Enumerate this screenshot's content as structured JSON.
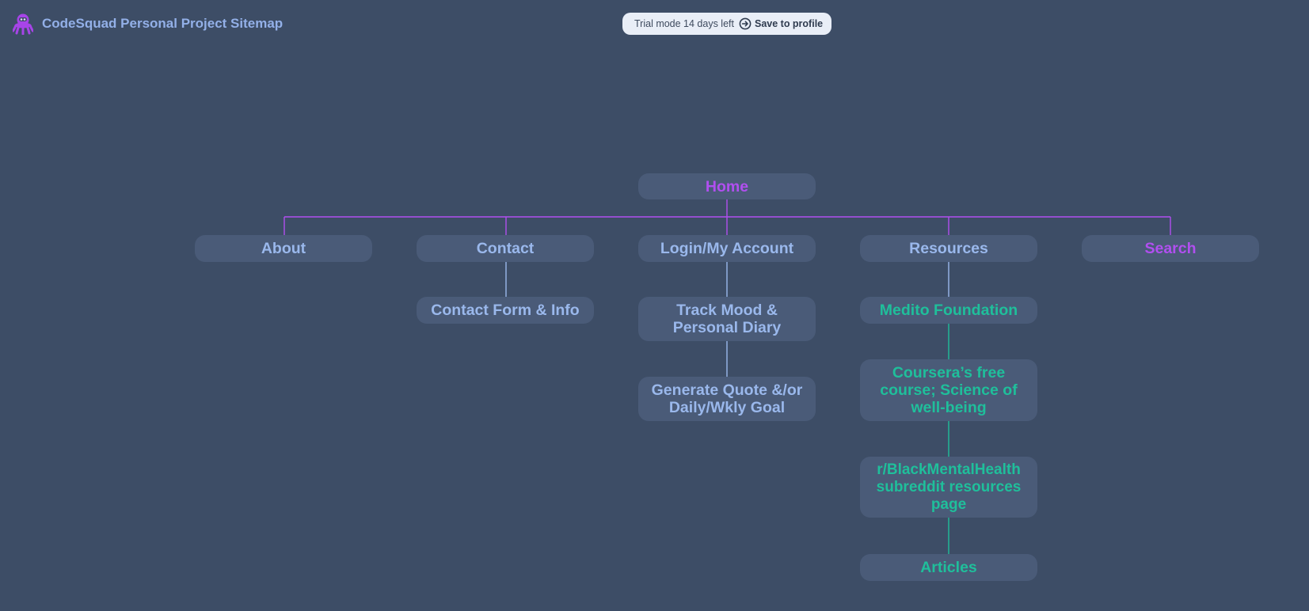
{
  "header": {
    "title": "CodeSquad Personal Project Sitemap",
    "logo_icon": "octopus-icon",
    "trial_text": "Trial mode 14 days left",
    "save_label": "Save to profile",
    "save_icon": "arrow-circle-right-icon"
  },
  "colors": {
    "background": "#3d4d66",
    "node_fill": "#4a5b78",
    "purple": "#b14ff0",
    "blue": "#9ab8ec",
    "teal": "#1fbf9b"
  },
  "sitemap": {
    "home": "Home",
    "about": "About",
    "contact": "Contact",
    "login": "Login/My Account",
    "resources": "Resources",
    "search": "Search",
    "contact_form": "Contact Form & Info",
    "track_mood": "Track Mood & Personal Diary",
    "generate_quote": "Generate Quote &/or Daily/Wkly Goal",
    "medito": "Medito Foundation",
    "coursera": "Coursera’s free course; Science of well-being",
    "black_mental_health": "r/BlackMentalHealth subreddit resources page",
    "articles": "Articles"
  }
}
